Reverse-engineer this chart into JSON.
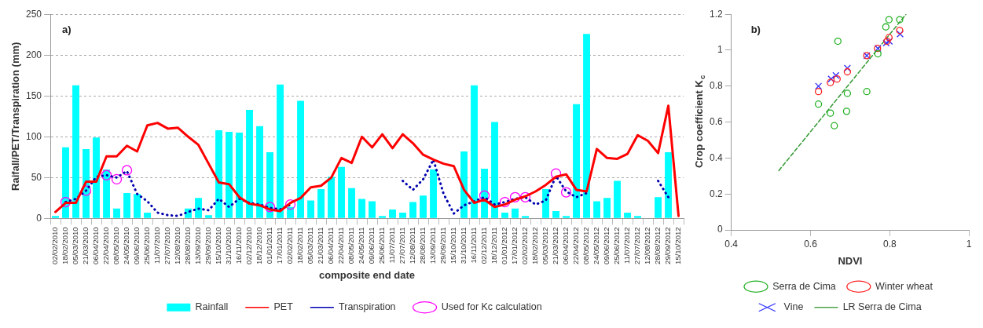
{
  "chart_data": [
    {
      "type": "bar",
      "annotations": [
        "a)"
      ],
      "xlabel": "composite end date",
      "ylabel": "Raifall/PET/Transpiration (mm)",
      "ylim": [
        0,
        250
      ],
      "yticks": [
        0,
        50,
        100,
        150,
        200,
        250
      ],
      "grid": "y",
      "legend": "bottom",
      "categories": [
        "02/02/2010",
        "18/02/2010",
        "05/03/2010",
        "21/03/2010",
        "06/04/2010",
        "22/04/2010",
        "08/05/2010",
        "24/05/2010",
        "09/06/2010",
        "25/06/2010",
        "11/07/2010",
        "27/07/2010",
        "12/08/2010",
        "28/08/2010",
        "13/09/2010",
        "29/09/2010",
        "15/10/2010",
        "31/10/2010",
        "16/11/2010",
        "02/12/2010",
        "18/12/2010",
        "01/01/2011",
        "17/01/2011",
        "02/02/2011",
        "18/02/2011",
        "05/03/2011",
        "21/03/2011",
        "06/04/2011",
        "22/04/2011",
        "08/05/2011",
        "24/05/2011",
        "09/06/2011",
        "25/06/2011",
        "11/07/2011",
        "27/07/2011",
        "12/08/2011",
        "28/08/2011",
        "13/09/2011",
        "29/09/2011",
        "15/10/2011",
        "31/10/2011",
        "16/11/2011",
        "02/12/2011",
        "18/12/2011",
        "01/01/2012",
        "17/01/2012",
        "02/02/2012",
        "18/02/2012",
        "05/03/2012",
        "21/03/2012",
        "06/04/2012",
        "22/04/2012",
        "08/05/2012",
        "24/05/2012",
        "09/06/2012",
        "25/06/2012",
        "11/07/2012",
        "27/07/2012",
        "12/08/2012",
        "28/08/2012",
        "29/09/2012",
        "15/10/2012"
      ],
      "series": [
        {
          "name": "Rainfall",
          "type": "bar",
          "color": "#00ffff",
          "values": [
            3,
            87,
            163,
            85,
            99,
            60,
            12,
            31,
            30,
            7,
            0,
            0,
            0,
            12,
            25,
            4,
            108,
            106,
            105,
            133,
            113,
            81,
            164,
            14,
            144,
            22,
            36,
            51,
            63,
            37,
            24,
            21,
            3,
            11,
            7,
            20,
            28,
            60,
            0,
            0,
            82,
            163,
            61,
            118,
            7,
            12,
            3,
            0,
            36,
            9,
            3,
            140,
            226,
            21,
            25,
            46,
            7,
            3,
            0,
            26,
            81,
            0
          ]
        },
        {
          "name": "PET",
          "type": "line",
          "color": "#ff0000",
          "line_style": "solid",
          "values": [
            8,
            19,
            19,
            45,
            45,
            76,
            76,
            89,
            82,
            114,
            117,
            110,
            111,
            100,
            90,
            67,
            44,
            42,
            26,
            18,
            16,
            11,
            9,
            19,
            25,
            38,
            40,
            50,
            74,
            68,
            100,
            87,
            103,
            86,
            103,
            92,
            78,
            72,
            67,
            64,
            35,
            19,
            23,
            14,
            17,
            23,
            27,
            33,
            41,
            51,
            54,
            35,
            33,
            85,
            74,
            73,
            79,
            102,
            95,
            80,
            138,
            3
          ]
        },
        {
          "name": "Transpiration",
          "type": "line",
          "color": "#0000b0",
          "line_style": "dotted",
          "values": [
            null,
            20,
            24,
            34,
            51,
            53,
            50,
            58,
            30,
            21,
            7,
            4,
            3,
            8,
            12,
            10,
            24,
            14,
            24,
            19,
            17,
            13,
            11,
            17,
            null,
            null,
            null,
            null,
            null,
            null,
            null,
            null,
            null,
            null,
            46,
            35,
            48,
            72,
            30,
            6,
            16,
            21,
            26,
            17,
            20,
            24,
            26,
            17,
            22,
            52,
            33,
            26,
            31,
            null,
            null,
            null,
            null,
            null,
            null,
            46,
            26,
            null
          ]
        },
        {
          "name": "Used for Kc calculation",
          "type": "scatter",
          "color": "#ff00ff",
          "marker": "circle",
          "x": [
            "18/02/2010",
            "21/03/2010",
            "22/04/2010",
            "08/05/2010",
            "24/05/2010",
            "01/01/2011",
            "02/02/2011",
            "02/12/2011",
            "01/01/2012",
            "17/01/2012",
            "02/02/2012",
            "21/03/2012",
            "06/04/2012"
          ],
          "values": [
            20,
            34,
            53,
            48,
            59,
            14,
            17,
            28,
            20,
            26,
            26,
            55,
            32
          ]
        }
      ]
    },
    {
      "type": "scatter",
      "annotations": [
        "b)"
      ],
      "xlabel": "NDVI",
      "ylabel": "Crop coefficient K$_{c}$",
      "xlim": [
        0.4,
        1
      ],
      "xticks": [
        0.4,
        0.6,
        0.8,
        1
      ],
      "ylim": [
        0,
        1.2
      ],
      "yticks": [
        0,
        0.2,
        0.4,
        0.6,
        0.8,
        1,
        1.2
      ],
      "legend": "bottom",
      "series": [
        {
          "name": "Serra de Cima",
          "color": "#22b022",
          "marker": "circle",
          "x": [
            0.62,
            0.65,
            0.66,
            0.669,
            0.693,
            0.691,
            0.742,
            0.77,
            0.79,
            0.798,
            0.825
          ],
          "values": [
            0.7,
            0.65,
            0.58,
            1.05,
            0.76,
            0.66,
            0.77,
            0.98,
            1.13,
            1.17,
            1.17
          ]
        },
        {
          "name": "Winter wheat",
          "color": "#ff2020",
          "marker": "circle",
          "x": [
            0.62,
            0.65,
            0.667,
            0.693,
            0.742,
            0.769,
            0.793,
            0.798,
            0.825
          ],
          "values": [
            0.77,
            0.82,
            0.84,
            0.88,
            0.97,
            1.01,
            1.05,
            1.07,
            1.11
          ]
        },
        {
          "name": "Vine",
          "color": "#3030ff",
          "marker": "cross",
          "x": [
            0.62,
            0.652,
            0.664,
            0.693,
            0.742,
            0.77,
            0.791,
            0.799,
            0.826
          ],
          "values": [
            0.8,
            0.84,
            0.86,
            0.9,
            0.97,
            1.01,
            1.04,
            1.05,
            1.09
          ]
        },
        {
          "name": "LR Serra de Cima",
          "type": "line",
          "color": "#339933",
          "line_style": "dashed",
          "x": [
            0.52,
            0.841
          ],
          "values": [
            0.33,
            1.2
          ]
        }
      ]
    }
  ]
}
